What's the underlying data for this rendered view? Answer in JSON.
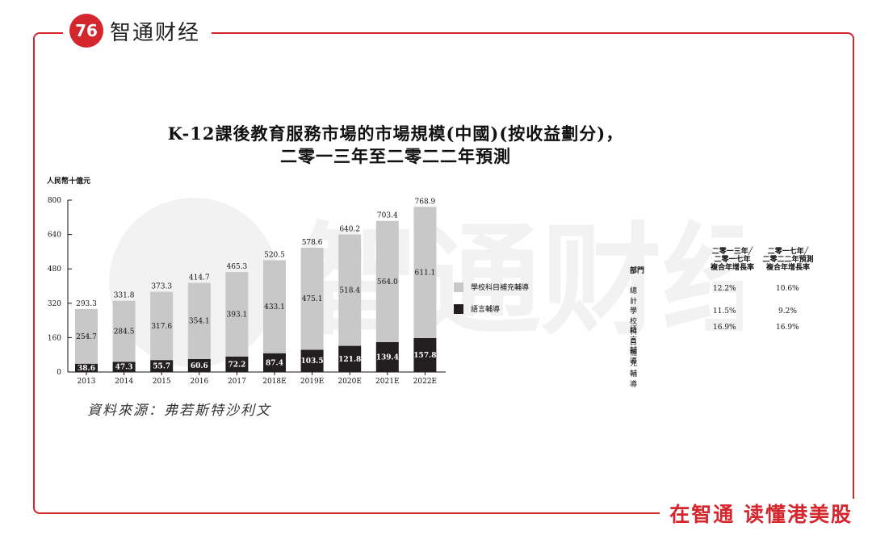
{
  "brand": {
    "name": "智通财经",
    "slogan": "在智通 读懂港美股"
  },
  "watermark_text": "智通财经",
  "chart_data": {
    "type": "bar",
    "stacked": true,
    "title": "K-12課後教育服務市場的市場規模(中國)(按收益劃分)，",
    "subtitle": "二零一三年至二零二二年預測",
    "ylabel": "人民幣十億元",
    "ylim": [
      0,
      800
    ],
    "yticks": [
      0,
      160,
      320,
      480,
      640,
      800
    ],
    "categories": [
      "2013",
      "2014",
      "2015",
      "2016",
      "2017",
      "2018E",
      "2019E",
      "2020E",
      "2021E",
      "2022E"
    ],
    "totals": [
      "293.3",
      "331.8",
      "373.3",
      "414.7",
      "465.3",
      "520.5",
      "578.6",
      "640.2",
      "703.4",
      "768.9"
    ],
    "series": [
      {
        "name": "語言輔導",
        "values": [
          38.6,
          47.3,
          55.7,
          60.6,
          72.2,
          87.4,
          103.5,
          121.8,
          139.4,
          157.8
        ],
        "labels": [
          "38.6",
          "47.3",
          "55.7",
          "60.6",
          "72.2",
          "87.4",
          "103.5",
          "121.8",
          "139.4",
          "157.8"
        ],
        "color": "#231f20"
      },
      {
        "name": "學校科目補充輔導",
        "values": [
          254.7,
          284.5,
          317.6,
          354.1,
          393.1,
          433.1,
          475.1,
          518.4,
          564.0,
          611.1
        ],
        "labels": [
          "254.7",
          "284.5",
          "317.6",
          "354.1",
          "393.1",
          "433.1",
          "475.1",
          "518.4",
          "564.0",
          "611.1"
        ],
        "color": "#c8c8c8"
      }
    ],
    "legend": "right"
  },
  "cagr_table": {
    "headers": {
      "dept": "部門",
      "col1_l1": "二零一三年╱",
      "col1_l2": "二零一七年",
      "col1_l3": "複合年增長率",
      "col2_l1": "二零一七年╱",
      "col2_l2": "二零二二年預測",
      "col2_l3": "複合年增長率"
    },
    "rows": [
      {
        "name": "總計",
        "c1": "12.2%",
        "c2": "10.6%"
      },
      {
        "name": "學校科目補充輔導",
        "c1": "11.5%",
        "c2": "9.2%"
      },
      {
        "name": "語言輔導",
        "c1": "16.9%",
        "c2": "16.9%"
      }
    ]
  },
  "source": "資料來源：弗若斯特沙利文"
}
